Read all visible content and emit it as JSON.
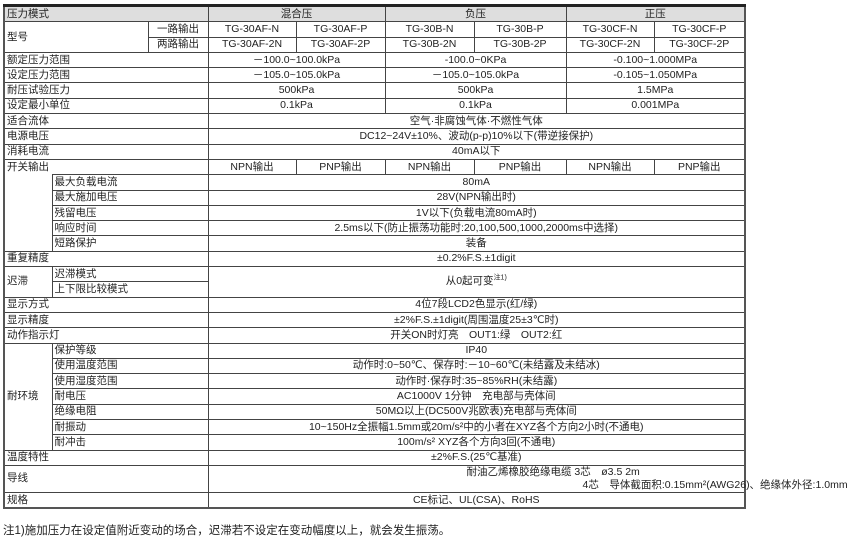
{
  "header": {
    "mode_label": "压力模式",
    "groups": [
      "混合压",
      "负压",
      "正压"
    ]
  },
  "model": {
    "label": "型号",
    "single_label": "一路输出",
    "dual_label": "两路输出",
    "single": [
      "TG-30AF-N",
      "TG-30AF-P",
      "TG-30B-N",
      "TG-30B-P",
      "TG-30CF-N",
      "TG-30CF-P"
    ],
    "dual": [
      "TG-30AF-2N",
      "TG-30AF-2P",
      "TG-30B-2N",
      "TG-30B-2P",
      "TG-30CF-2N",
      "TG-30CF-2P"
    ]
  },
  "rated_range": {
    "label": "额定压力范围",
    "values": [
      "－100.0~100.0kPa",
      "-100.0~0KPa",
      "-0.100~1.000MPa"
    ]
  },
  "set_range": {
    "label": "设定压力范围",
    "values": [
      "－105.0~105.0kPa",
      "－105.0~105.0kPa",
      "-0.105~1.050MPa"
    ]
  },
  "proof_pressure": {
    "label": "耐压试验压力",
    "values": [
      "500kPa",
      "500kPa",
      "1.5MPa"
    ]
  },
  "min_unit": {
    "label": "设定最小单位",
    "values": [
      "0.1kPa",
      "0.1kPa",
      "0.001MPa"
    ]
  },
  "fluid": {
    "label": "适合流体",
    "value": "空气·非腐蚀气体·不燃性气体"
  },
  "power": {
    "label": "电源电压",
    "value": "DC12~24V±10%、波动(p-p)10%以下(带逆接保护)"
  },
  "current": {
    "label": "消耗电流",
    "value": "40mA以下"
  },
  "switch_output": {
    "label": "开关输出",
    "types": [
      "NPN输出",
      "PNP输出",
      "NPN输出",
      "PNP输出",
      "NPN输出",
      "PNP输出"
    ],
    "items": [
      {
        "label": "最大负载电流",
        "value": "80mA"
      },
      {
        "label": "最大施加电压",
        "value": "28V(NPN输出时)"
      },
      {
        "label": "残留电压",
        "value": "1V以下(负载电流80mA时)"
      },
      {
        "label": "响应时间",
        "value": "2.5ms以下(防止振荡功能时:20,100,500,1000,2000ms中选择)"
      },
      {
        "label": "短路保护",
        "value": "装备"
      }
    ]
  },
  "repeat": {
    "label": "重复精度",
    "value": "±0.2%F.S.±1digit"
  },
  "hysteresis": {
    "label": "迟滞",
    "sub1": "迟滞模式",
    "sub2": "上下限比较模式",
    "value": "从0起可变",
    "note_ref": "注1)"
  },
  "display": {
    "label": "显示方式",
    "value": "4位7段LCD2色显示(红/绿)"
  },
  "display_accuracy": {
    "label": "显示精度",
    "value": "±2%F.S.±1digit(周围温度25±3℃时)"
  },
  "indicator": {
    "label": "动作指示灯",
    "value": "开关ON时灯亮　OUT1:绿　OUT2:红"
  },
  "environment": {
    "label": "耐环境",
    "items": [
      {
        "label": "保护等级",
        "value": "IP40"
      },
      {
        "label": "使用温度范围",
        "value": "动作时:0~50℃、保存时:－10~60℃(未结露及未结冰)"
      },
      {
        "label": "使用湿度范围",
        "value": "动作时·保存时:35~85%RH(未结露)"
      },
      {
        "label": "耐电压",
        "value": "AC1000V  1分钟　充电部与壳体间"
      },
      {
        "label": "绝缘电阻",
        "value": "50MΩ以上(DC500V兆欧表)充电部与壳体间"
      },
      {
        "label": "耐振动",
        "value": "10~150Hz全振幅1.5mm或20m/s²中的小者在XYZ各个方向2小时(不通电)"
      },
      {
        "label": "耐冲击",
        "value": "100m/s²  XYZ各个方向3回(不通电)"
      }
    ]
  },
  "temp_char": {
    "label": "温度特性",
    "value": "±2%F.S.(25℃基准)"
  },
  "wire": {
    "label": "导线",
    "line1": "耐油乙烯橡胶绝缘电缆  3芯　ø3.5 2m",
    "line2": "4芯　导体截面积:0.15mm²(AWG26)、绝缘体外径:1.0mm"
  },
  "standard": {
    "label": "规格",
    "value": "CE标记、UL(CSA)、RoHS"
  },
  "footnote": "注1)施加压力在设定值附近变动的场合，迟滞若不设定在变动幅度以上，就会发生振荡。"
}
